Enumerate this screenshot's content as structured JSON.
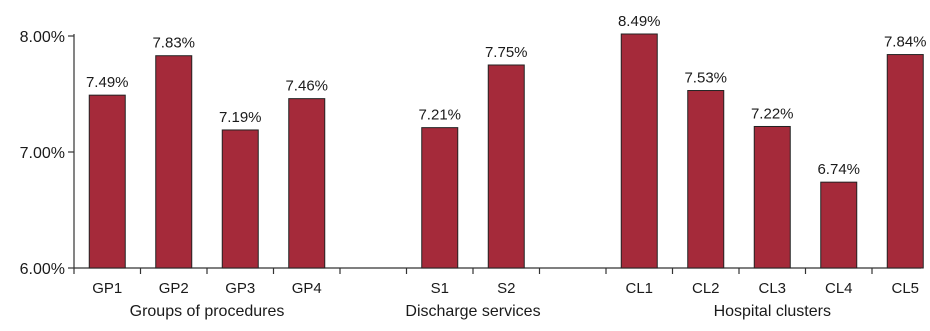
{
  "chart_data": {
    "type": "bar",
    "title": "",
    "xlabel": "",
    "ylabel": "",
    "ylim": [
      6.0,
      8.0
    ],
    "yticks": [
      "6.00%",
      "7.00%",
      "8.00%"
    ],
    "ytick_values": [
      6.0,
      7.0,
      8.0
    ],
    "bar_color": "#A52A3A",
    "categories": [
      "GP1",
      "GP2",
      "GP3",
      "GP4",
      "S1",
      "S2",
      "CL1",
      "CL2",
      "CL3",
      "CL4",
      "CL5"
    ],
    "values": [
      7.49,
      7.83,
      7.19,
      7.46,
      7.21,
      7.75,
      8.49,
      7.53,
      7.22,
      6.74,
      7.84
    ],
    "data_labels": [
      "7.49%",
      "7.83%",
      "7.19%",
      "7.46%",
      "7.21%",
      "7.75%",
      "8.49%",
      "7.53%",
      "7.22%",
      "6.74%",
      "7.84%"
    ],
    "groups": [
      {
        "label": "Groups of procedures",
        "categories": [
          "GP1",
          "GP2",
          "GP3",
          "GP4"
        ]
      },
      {
        "label": "Discharge services",
        "categories": [
          "S1",
          "S2"
        ]
      },
      {
        "label": "Hospital clusters",
        "categories": [
          "CL1",
          "CL2",
          "CL3",
          "CL4",
          "CL5"
        ]
      }
    ]
  }
}
